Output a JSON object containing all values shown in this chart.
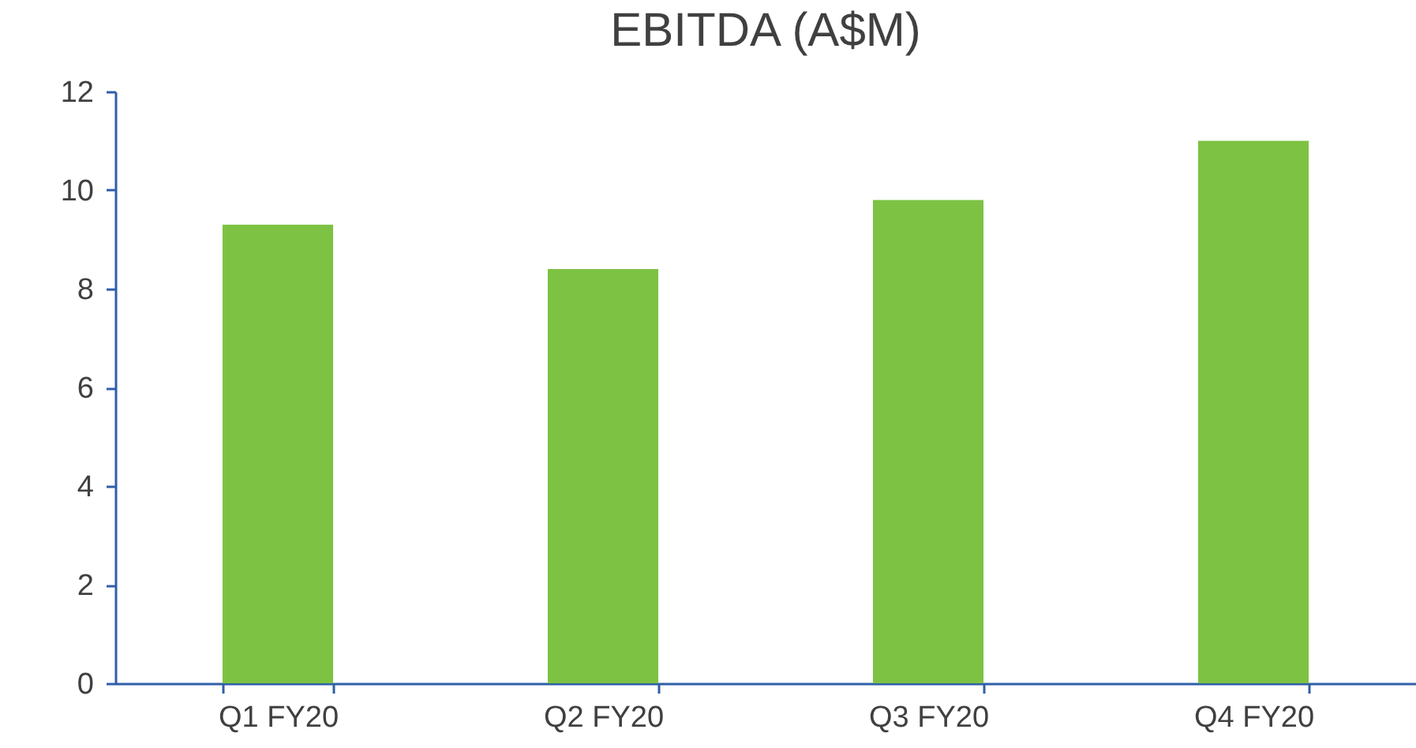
{
  "chart_data": {
    "type": "bar",
    "title": "EBITDA (A$M)",
    "categories": [
      "Q1 FY20",
      "Q2 FY20",
      "Q3 FY20",
      "Q4 FY20"
    ],
    "values": [
      9.3,
      8.4,
      9.8,
      11.0
    ],
    "color": "#7dc242",
    "ylim": [
      0,
      12
    ],
    "yticks": [
      0,
      2,
      4,
      6,
      8,
      10,
      12
    ],
    "grid": false
  }
}
